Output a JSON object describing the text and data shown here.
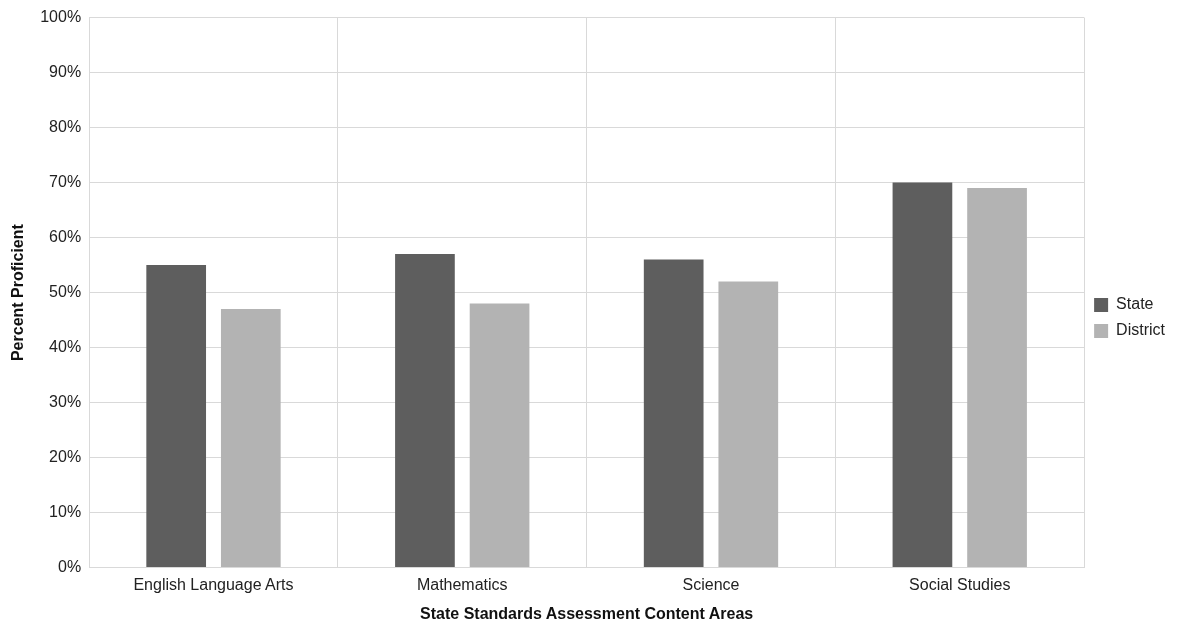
{
  "chart_data": {
    "type": "bar",
    "xlabel": "State Standards Assessment Content Areas",
    "ylabel": "Percent Proficient",
    "categories": [
      "English Language Arts",
      "Mathematics",
      "Science",
      "Social Studies"
    ],
    "series": [
      {
        "name": "State",
        "color": "#5e5e5e",
        "values": [
          55,
          57,
          56,
          70
        ]
      },
      {
        "name": "District",
        "color": "#b3b3b3",
        "values": [
          47,
          48,
          52,
          69
        ]
      }
    ],
    "ylim": [
      0,
      100
    ],
    "yticks": [
      {
        "value": 0,
        "label": "0%"
      },
      {
        "value": 10,
        "label": "10%"
      },
      {
        "value": 20,
        "label": "20%"
      },
      {
        "value": 30,
        "label": "30%"
      },
      {
        "value": 40,
        "label": "40%"
      },
      {
        "value": 50,
        "label": "50%"
      },
      {
        "value": 60,
        "label": "60%"
      },
      {
        "value": 70,
        "label": "70%"
      },
      {
        "value": 80,
        "label": "80%"
      },
      {
        "value": 90,
        "label": "90%"
      },
      {
        "value": 100,
        "label": "100%"
      }
    ],
    "grid": true,
    "legend": "right"
  }
}
